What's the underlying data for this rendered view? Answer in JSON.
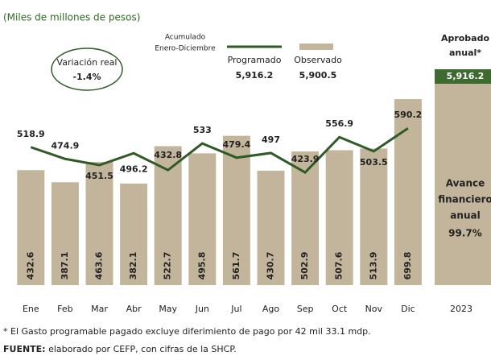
{
  "chart_data": {
    "type": "bar",
    "subtitle": "(Miles de millones de pesos)",
    "categories": [
      "Ene",
      "Feb",
      "Mar",
      "Abr",
      "May",
      "Jun",
      "Jul",
      "Ago",
      "Sep",
      "Oct",
      "Nov",
      "Dic"
    ],
    "series": [
      {
        "name": "Observado",
        "type": "bar",
        "color": "#c3b59b",
        "values": [
          432.6,
          387.1,
          463.6,
          382.1,
          522.7,
          495.8,
          561.7,
          430.7,
          502.9,
          507.6,
          513.9,
          699.8
        ]
      },
      {
        "name": "Programado",
        "type": "line",
        "color": "#2f5a25",
        "values": [
          518.9,
          474.9,
          451.5,
          496.2,
          432.8,
          533.0,
          479.4,
          497.0,
          423.9,
          556.9,
          503.5,
          590.2
        ]
      }
    ],
    "ylim": [
      0,
      700
    ],
    "legend": {
      "title": [
        "Acumulado",
        "Enero-Diciembre"
      ],
      "totals": [
        "5,916.2",
        "5,900.5"
      ]
    },
    "variation": {
      "label": "Variación real",
      "value": "-1.4%"
    },
    "annual": {
      "approved_label": [
        "Aprobado",
        "anual*"
      ],
      "approved_value": "5,916.2",
      "progress_label": [
        "Avance",
        "financiero",
        "anual"
      ],
      "progress_value": "99.7%",
      "year": "2023"
    },
    "footnote": "* El Gasto programable pagado excluye diferimiento de pago por 42 mil 33.1 mdp.",
    "source": {
      "label": "FUENTE:",
      "text": " elaborado por CEFP, con cifras de la SHCP."
    }
  }
}
